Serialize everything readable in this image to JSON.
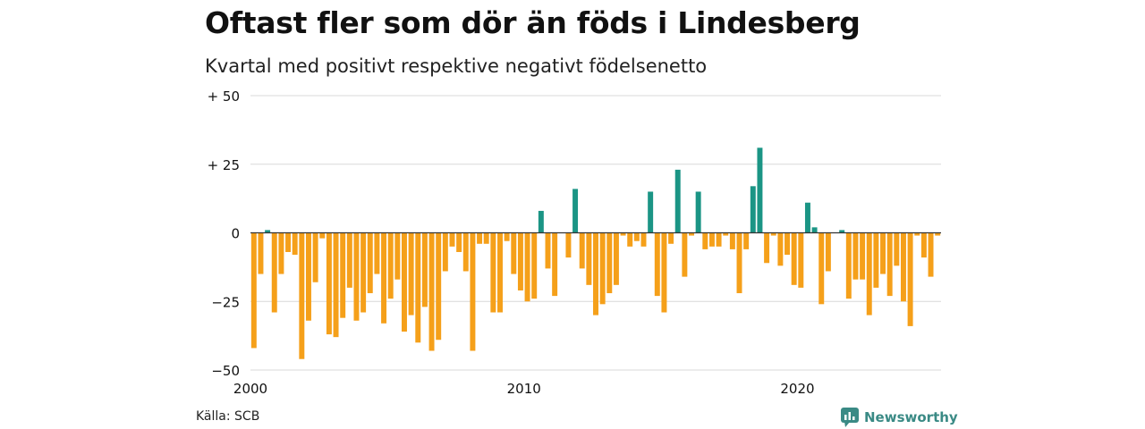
{
  "title": "Oftast fler som dör än föds i Lindesberg",
  "subtitle": "Kvartal med positivt respektive negativt födelsenetto",
  "source": "Källa: SCB",
  "brand": "Newsworthy",
  "colors": {
    "positive": "#1b9585",
    "negative": "#f5a01a",
    "grid": "#d9d9d9",
    "brand": "#3a8a85"
  },
  "chart_data": {
    "type": "bar",
    "y_ticks": [
      {
        "value": 50,
        "label": "+ 50"
      },
      {
        "value": 25,
        "label": "+ 25"
      },
      {
        "value": 0,
        "label": "0"
      },
      {
        "value": -25,
        "label": "−25"
      },
      {
        "value": -50,
        "label": "−50"
      }
    ],
    "x_ticks": [
      {
        "value": 2000,
        "label": "2000"
      },
      {
        "value": 2010,
        "label": "2010"
      },
      {
        "value": 2020,
        "label": "2020"
      }
    ],
    "ylim": [
      -50,
      50
    ],
    "xlim": [
      2000,
      2025.25
    ],
    "grid": true,
    "categories": [
      "2000 K1",
      "2000 K2",
      "2000 K3",
      "2000 K4",
      "2001 K1",
      "2001 K2",
      "2001 K3",
      "2001 K4",
      "2002 K1",
      "2002 K2",
      "2002 K3",
      "2002 K4",
      "2003 K1",
      "2003 K2",
      "2003 K3",
      "2003 K4",
      "2004 K1",
      "2004 K2",
      "2004 K3",
      "2004 K4",
      "2005 K1",
      "2005 K2",
      "2005 K3",
      "2005 K4",
      "2006 K1",
      "2006 K2",
      "2006 K3",
      "2006 K4",
      "2007 K1",
      "2007 K2",
      "2007 K3",
      "2007 K4",
      "2008 K1",
      "2008 K2",
      "2008 K3",
      "2008 K4",
      "2009 K1",
      "2009 K2",
      "2009 K3",
      "2009 K4",
      "2010 K1",
      "2010 K2",
      "2010 K3",
      "2010 K4",
      "2011 K1",
      "2011 K2",
      "2011 K3",
      "2011 K4",
      "2012 K1",
      "2012 K2",
      "2012 K3",
      "2012 K4",
      "2013 K1",
      "2013 K2",
      "2013 K3",
      "2013 K4",
      "2014 K1",
      "2014 K2",
      "2014 K3",
      "2014 K4",
      "2015 K1",
      "2015 K2",
      "2015 K3",
      "2015 K4",
      "2016 K1",
      "2016 K2",
      "2016 K3",
      "2016 K4",
      "2017 K1",
      "2017 K2",
      "2017 K3",
      "2017 K4",
      "2018 K1",
      "2018 K2",
      "2018 K3",
      "2018 K4",
      "2019 K1",
      "2019 K2",
      "2019 K3",
      "2019 K4",
      "2020 K1",
      "2020 K2",
      "2020 K3",
      "2020 K4",
      "2021 K1",
      "2021 K2",
      "2021 K3",
      "2021 K4",
      "2022 K1",
      "2022 K2",
      "2022 K3",
      "2022 K4",
      "2023 K1",
      "2023 K2",
      "2023 K3",
      "2023 K4",
      "2024 K1",
      "2024 K2",
      "2024 K3",
      "2024 K4",
      "2025 K1"
    ],
    "values": [
      -42,
      -15,
      1,
      -29,
      -15,
      -7,
      -8,
      -46,
      -32,
      -18,
      -2,
      -37,
      -38,
      -31,
      -20,
      -32,
      -29,
      -22,
      -15,
      -33,
      -24,
      -17,
      -36,
      -30,
      -40,
      -27,
      -43,
      -39,
      -14,
      -5,
      -7,
      -14,
      -43,
      -4,
      -4,
      -29,
      -29,
      -3,
      -15,
      -21,
      -25,
      -24,
      8,
      -13,
      -23,
      0,
      -9,
      16,
      -13,
      -19,
      -30,
      -26,
      -22,
      -19,
      -1,
      -5,
      -3,
      -5,
      15,
      -23,
      -29,
      -4,
      23,
      -16,
      -1,
      15,
      -6,
      -5,
      -5,
      -1,
      -6,
      -22,
      -6,
      17,
      31,
      -11,
      -1,
      -12,
      -8,
      -19,
      -20,
      11,
      2,
      -26,
      -14,
      0,
      1,
      -24,
      -17,
      -17,
      -30,
      -20,
      -15,
      -23,
      -12,
      -25,
      -34,
      -1,
      -9,
      -16,
      -1
    ]
  }
}
